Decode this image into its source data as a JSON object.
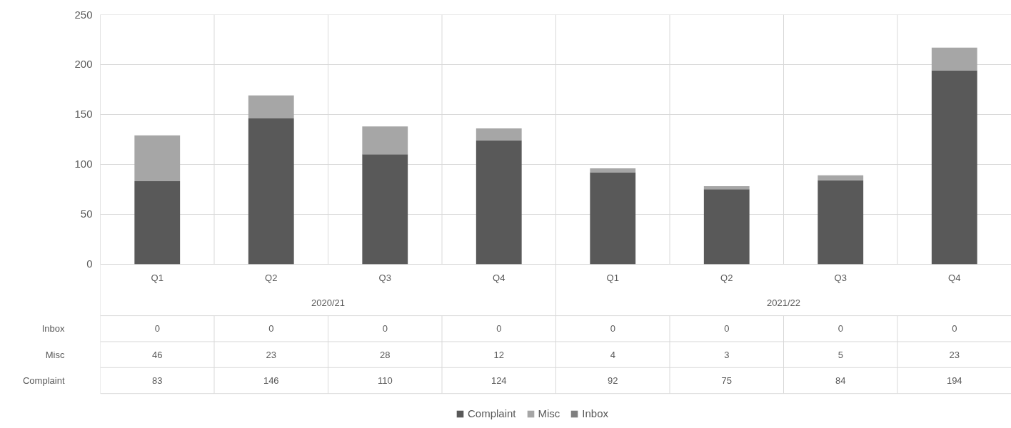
{
  "chart_data": {
    "type": "bar",
    "stacked": true,
    "categories": [
      "Q1",
      "Q2",
      "Q3",
      "Q4",
      "Q1",
      "Q2",
      "Q3",
      "Q4"
    ],
    "annotations": [
      "2020/21",
      "2021/22"
    ],
    "series": [
      {
        "name": "Complaint",
        "color": "#595959",
        "values": [
          83,
          146,
          110,
          124,
          92,
          75,
          84,
          194
        ]
      },
      {
        "name": "Misc",
        "color": "#a6a6a6",
        "values": [
          46,
          23,
          28,
          12,
          4,
          3,
          5,
          23
        ]
      },
      {
        "name": "Inbox",
        "color": "#7f7f7f",
        "values": [
          0,
          0,
          0,
          0,
          0,
          0,
          0,
          0
        ]
      }
    ],
    "ylim": [
      0,
      250
    ],
    "yticks": [
      0,
      50,
      100,
      150,
      200,
      250
    ],
    "grid": true,
    "data_labels": true,
    "legend": "bottom"
  }
}
